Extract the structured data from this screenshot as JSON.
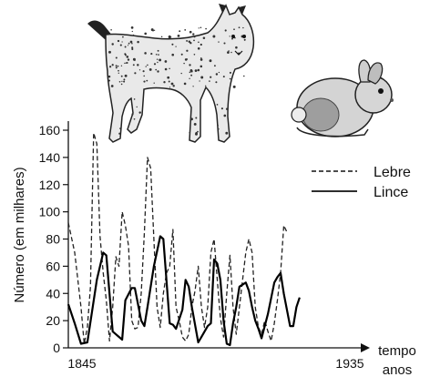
{
  "chart_data": {
    "type": "line",
    "ylabel": "Número (em milhares)",
    "xlabel_line1": "tempo",
    "xlabel_line2": "anos",
    "x_tick_labels": [
      "1845",
      "1935"
    ],
    "xlim": [
      1845,
      1935
    ],
    "ylim": [
      0,
      160
    ],
    "y_ticks": [
      0,
      20,
      40,
      60,
      80,
      100,
      120,
      140,
      160
    ],
    "grid": false,
    "legend_position": "top-right",
    "series": [
      {
        "name": "Lebre",
        "style": "dashed",
        "color": "#222222",
        "points": [
          [
            1845,
            92
          ],
          [
            1847,
            70
          ],
          [
            1849,
            30
          ],
          [
            1850,
            3
          ],
          [
            1851,
            15
          ],
          [
            1852,
            45
          ],
          [
            1853,
            158
          ],
          [
            1854,
            150
          ],
          [
            1855,
            82
          ],
          [
            1856,
            55
          ],
          [
            1857,
            35
          ],
          [
            1858,
            5
          ],
          [
            1859,
            30
          ],
          [
            1860,
            67
          ],
          [
            1861,
            60
          ],
          [
            1862,
            100
          ],
          [
            1863,
            90
          ],
          [
            1864,
            75
          ],
          [
            1865,
            20
          ],
          [
            1866,
            14
          ],
          [
            1867,
            15
          ],
          [
            1868,
            40
          ],
          [
            1869,
            85
          ],
          [
            1870,
            140
          ],
          [
            1871,
            132
          ],
          [
            1872,
            80
          ],
          [
            1873,
            30
          ],
          [
            1874,
            15
          ],
          [
            1875,
            40
          ],
          [
            1876,
            55
          ],
          [
            1877,
            60
          ],
          [
            1878,
            87
          ],
          [
            1879,
            30
          ],
          [
            1880,
            20
          ],
          [
            1881,
            8
          ],
          [
            1882,
            5
          ],
          [
            1883,
            10
          ],
          [
            1884,
            30
          ],
          [
            1885,
            42
          ],
          [
            1886,
            60
          ],
          [
            1887,
            30
          ],
          [
            1888,
            15
          ],
          [
            1889,
            30
          ],
          [
            1890,
            70
          ],
          [
            1891,
            80
          ],
          [
            1892,
            50
          ],
          [
            1893,
            22
          ],
          [
            1894,
            8
          ],
          [
            1895,
            40
          ],
          [
            1896,
            68
          ],
          [
            1897,
            30
          ],
          [
            1898,
            10
          ],
          [
            1899,
            30
          ],
          [
            1900,
            50
          ],
          [
            1901,
            70
          ],
          [
            1902,
            80
          ],
          [
            1903,
            70
          ],
          [
            1904,
            30
          ],
          [
            1905,
            15
          ],
          [
            1906,
            10
          ],
          [
            1907,
            20
          ],
          [
            1908,
            12
          ],
          [
            1909,
            5
          ],
          [
            1910,
            18
          ],
          [
            1911,
            35
          ],
          [
            1912,
            55
          ],
          [
            1913,
            90
          ],
          [
            1914,
            85
          ]
        ]
      },
      {
        "name": "Lince",
        "style": "solid",
        "color": "#000000",
        "points": [
          [
            1845,
            32
          ],
          [
            1847,
            18
          ],
          [
            1849,
            3
          ],
          [
            1851,
            4
          ],
          [
            1854,
            50
          ],
          [
            1856,
            70
          ],
          [
            1857,
            68
          ],
          [
            1859,
            12
          ],
          [
            1860,
            10
          ],
          [
            1862,
            6
          ],
          [
            1863,
            35
          ],
          [
            1865,
            44
          ],
          [
            1866,
            44
          ],
          [
            1868,
            20
          ],
          [
            1869,
            16
          ],
          [
            1870,
            30
          ],
          [
            1872,
            60
          ],
          [
            1874,
            82
          ],
          [
            1875,
            80
          ],
          [
            1877,
            18
          ],
          [
            1878,
            17
          ],
          [
            1879,
            14
          ],
          [
            1881,
            28
          ],
          [
            1882,
            50
          ],
          [
            1883,
            45
          ],
          [
            1884,
            30
          ],
          [
            1886,
            4
          ],
          [
            1887,
            8
          ],
          [
            1889,
            16
          ],
          [
            1890,
            18
          ],
          [
            1891,
            65
          ],
          [
            1892,
            62
          ],
          [
            1893,
            50
          ],
          [
            1894,
            20
          ],
          [
            1895,
            3
          ],
          [
            1896,
            2
          ],
          [
            1897,
            18
          ],
          [
            1898,
            30
          ],
          [
            1899,
            45
          ],
          [
            1901,
            48
          ],
          [
            1902,
            42
          ],
          [
            1903,
            30
          ],
          [
            1904,
            20
          ],
          [
            1905,
            14
          ],
          [
            1906,
            7
          ],
          [
            1908,
            25
          ],
          [
            1910,
            48
          ],
          [
            1911,
            52
          ],
          [
            1912,
            55
          ],
          [
            1913,
            40
          ],
          [
            1915,
            16
          ],
          [
            1916,
            16
          ],
          [
            1917,
            30
          ],
          [
            1918,
            37
          ]
        ]
      }
    ]
  },
  "illustrations": {
    "predator_icon": "lynx-illustration",
    "prey_icon": "rabbit-illustration"
  }
}
